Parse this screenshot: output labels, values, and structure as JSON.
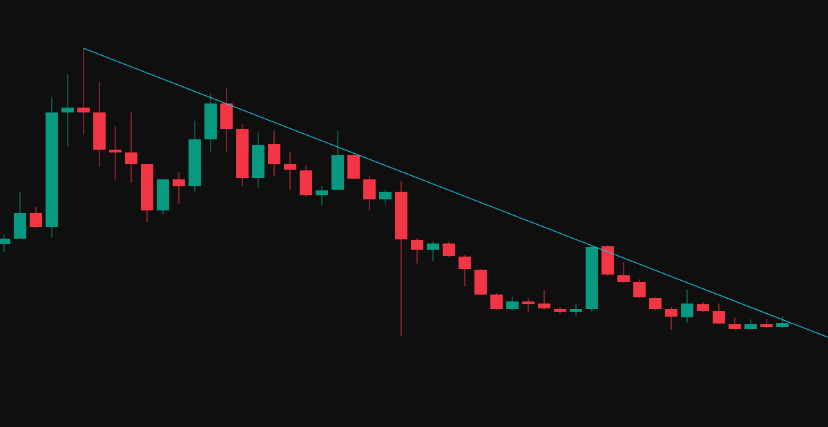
{
  "chart_data": {
    "type": "candlestick",
    "x": [
      0,
      1,
      2,
      3,
      4,
      5,
      6,
      7,
      8,
      9,
      10,
      11,
      12,
      13,
      14,
      15,
      16,
      17,
      18,
      19,
      20,
      21,
      22,
      23,
      24,
      25,
      26,
      27,
      28,
      29,
      30,
      31,
      32,
      33,
      34,
      35,
      36,
      37,
      38,
      39,
      40,
      41,
      42,
      43,
      44,
      45,
      46,
      47,
      48,
      49
    ],
    "open": [
      265,
      273,
      310,
      290,
      456,
      463,
      456,
      402,
      398,
      381,
      314,
      359,
      349,
      417,
      469,
      432,
      361,
      410,
      381,
      372,
      336,
      344,
      394,
      359,
      330,
      341,
      271,
      257,
      266,
      247,
      228,
      192,
      171,
      182,
      179,
      171,
      167,
      171,
      262,
      220,
      210,
      187,
      171,
      159,
      178,
      168,
      149,
      142,
      149,
      145
    ],
    "high": [
      279,
      341,
      319,
      479,
      511,
      549,
      501,
      436,
      456,
      381,
      359,
      369,
      444,
      484,
      491,
      439,
      427,
      429,
      399,
      379,
      349,
      429,
      397,
      364,
      344,
      357,
      274,
      269,
      269,
      249,
      229,
      194,
      189,
      187,
      199,
      174,
      179,
      264,
      264,
      239,
      214,
      189,
      174,
      199,
      181,
      179,
      159,
      156,
      157,
      161
    ],
    "low": [
      254,
      273,
      289,
      275,
      407,
      424,
      377,
      359,
      354,
      297,
      308,
      324,
      341,
      399,
      399,
      349,
      347,
      364,
      344,
      334,
      322,
      344,
      359,
      314,
      324,
      132,
      237,
      241,
      246,
      204,
      191,
      169,
      169,
      167,
      170,
      164,
      161,
      167,
      219,
      209,
      187,
      169,
      141,
      151,
      167,
      149,
      141,
      141,
      143,
      143
    ],
    "close": [
      273,
      310,
      290,
      456,
      463,
      456,
      402,
      398,
      381,
      314,
      359,
      349,
      417,
      469,
      432,
      361,
      409,
      381,
      373,
      336,
      343,
      394,
      360,
      330,
      341,
      272,
      257,
      266,
      248,
      229,
      192,
      171,
      182,
      178,
      172,
      167,
      171,
      261,
      221,
      210,
      188,
      171,
      160,
      179,
      168,
      150,
      142,
      149,
      145,
      151
    ],
    "up_color": "#089981",
    "down_color": "#f23645",
    "trendline": {
      "x": [
        5,
        51.87
      ],
      "y": [
        549,
        130
      ],
      "color": "#22b8d6"
    },
    "xlim": [
      -0.26,
      51.87
    ],
    "ylim": [
      0,
      619
    ]
  }
}
